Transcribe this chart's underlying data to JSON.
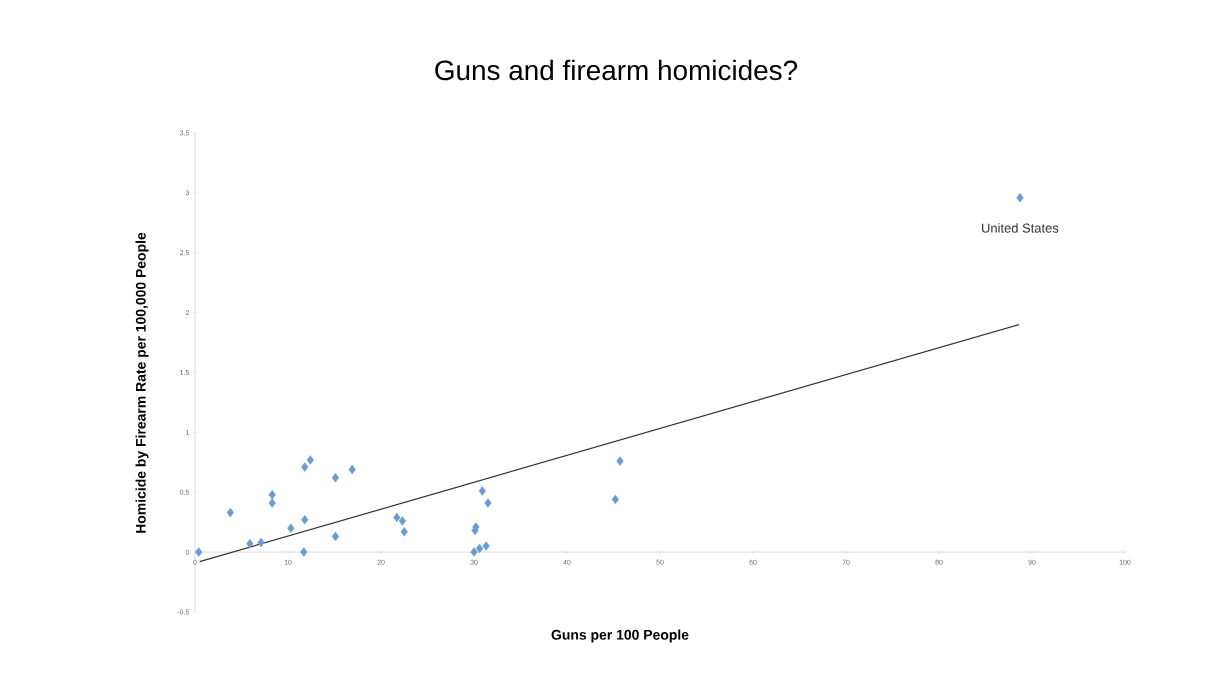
{
  "chart_data": {
    "type": "scatter",
    "title": "Guns and firearm homicides?",
    "xlabel": "Guns per 100 People",
    "ylabel": "Homicide by Firearm Rate per 100,000 People",
    "xlim": [
      0,
      100
    ],
    "ylim": [
      -0.5,
      3.5
    ],
    "xticks": [
      0,
      10,
      20,
      30,
      40,
      50,
      60,
      70,
      80,
      90,
      100
    ],
    "yticks": [
      -0.5,
      0,
      0.5,
      1,
      1.5,
      2,
      2.5,
      3,
      3.5
    ],
    "grid": false,
    "annotations": [
      {
        "text": "United States",
        "x": 88.7,
        "y": 2.96
      }
    ],
    "series": [
      {
        "marker": "diamond",
        "color": "#6a9bd1",
        "x": [
          0.4,
          3.8,
          5.9,
          7.1,
          8.3,
          8.3,
          10.3,
          11.7,
          11.8,
          11.8,
          12.4,
          15.1,
          15.1,
          16.9,
          21.7,
          22.3,
          22.5,
          30.0,
          30.1,
          30.2,
          30.6,
          30.9,
          31.3,
          31.5,
          45.2,
          45.7,
          88.7
        ],
        "values": [
          0.0,
          0.33,
          0.07,
          0.08,
          0.48,
          0.41,
          0.2,
          0.0,
          0.27,
          0.71,
          0.77,
          0.62,
          0.13,
          0.69,
          0.29,
          0.26,
          0.17,
          0.0,
          0.18,
          0.21,
          0.03,
          0.51,
          0.05,
          0.41,
          0.44,
          0.76,
          2.96
        ]
      },
      {
        "type": "line",
        "marker": "none",
        "color": "#333333",
        "x": [
          0.5,
          88.6
        ],
        "values": [
          -0.08,
          1.9
        ]
      }
    ]
  }
}
